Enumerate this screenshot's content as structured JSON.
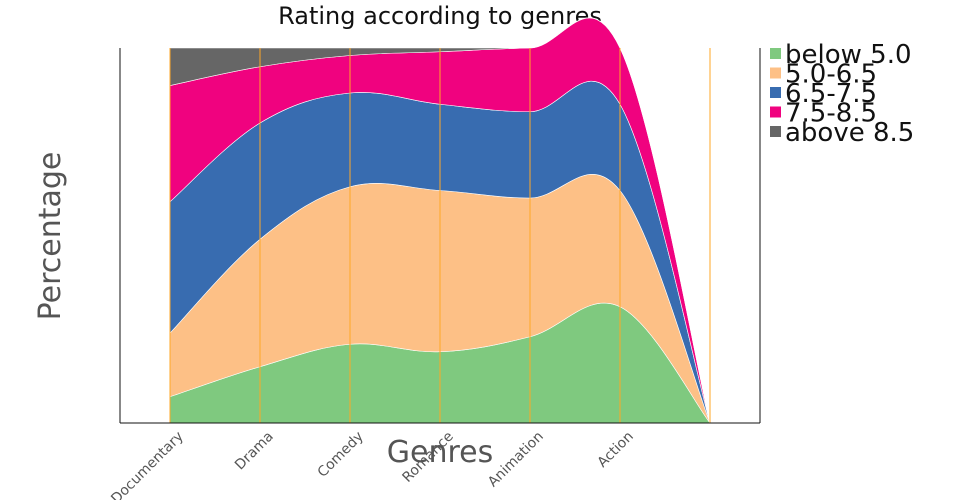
{
  "chart_data": {
    "type": "area",
    "stacking": "percent",
    "title": "Rating according to genres",
    "xlabel": "Genres",
    "ylabel": "Percentage",
    "ylim": [
      0,
      100
    ],
    "categories": [
      "Documentary",
      "Drama",
      "Comedy",
      "Romance",
      "Animation",
      "Action",
      ""
    ],
    "series": [
      {
        "name": "below 5.0",
        "color": "#7fc97f",
        "values": [
          7,
          15,
          21,
          19,
          23,
          31,
          0
        ]
      },
      {
        "name": "5.0-6.5",
        "color": "#fdc086",
        "values": [
          17,
          34,
          42,
          43,
          37,
          31,
          0
        ]
      },
      {
        "name": "6.5-7.5",
        "color": "#386cb0",
        "values": [
          35,
          31,
          25,
          23,
          23,
          23,
          0
        ]
      },
      {
        "name": "7.5-8.5",
        "color": "#f0027f",
        "values": [
          31,
          15,
          10,
          14,
          17,
          15,
          0
        ]
      },
      {
        "name": "above 8.5",
        "color": "#666666",
        "values": [
          10,
          5,
          2,
          1,
          0,
          0,
          0
        ]
      }
    ],
    "gridlines": "vertical",
    "gridline_color": "#ffa726",
    "legend_position": "right"
  }
}
